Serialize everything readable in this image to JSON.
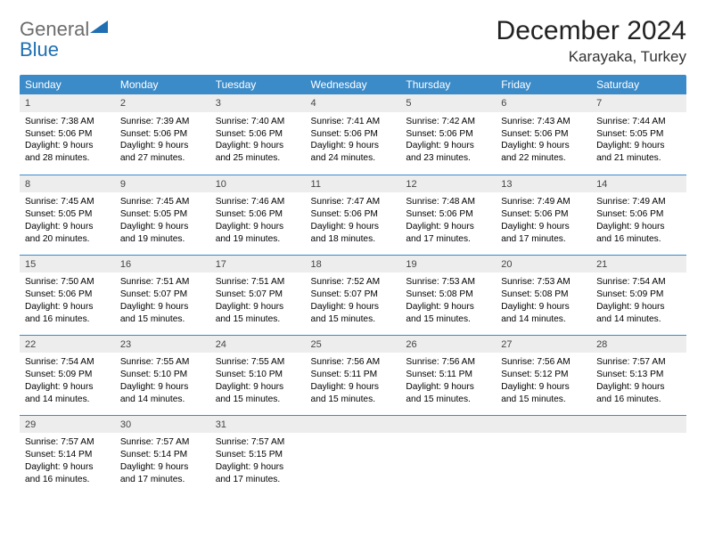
{
  "brand": {
    "word1": "General",
    "word2": "Blue",
    "gray": "#6d6d6d",
    "blue": "#1f6fb2"
  },
  "title": "December 2024",
  "location": "Karayaka, Turkey",
  "colors": {
    "header_bg": "#3b8bc9",
    "header_text": "#ffffff",
    "daynum_bg": "#ededed",
    "rule": "#3b8bc9",
    "page_bg": "#ffffff"
  },
  "weekdays": [
    "Sunday",
    "Monday",
    "Tuesday",
    "Wednesday",
    "Thursday",
    "Friday",
    "Saturday"
  ],
  "weeks": [
    [
      {
        "n": "1",
        "sr": "7:38 AM",
        "ss": "5:06 PM",
        "dl": "9 hours and 28 minutes."
      },
      {
        "n": "2",
        "sr": "7:39 AM",
        "ss": "5:06 PM",
        "dl": "9 hours and 27 minutes."
      },
      {
        "n": "3",
        "sr": "7:40 AM",
        "ss": "5:06 PM",
        "dl": "9 hours and 25 minutes."
      },
      {
        "n": "4",
        "sr": "7:41 AM",
        "ss": "5:06 PM",
        "dl": "9 hours and 24 minutes."
      },
      {
        "n": "5",
        "sr": "7:42 AM",
        "ss": "5:06 PM",
        "dl": "9 hours and 23 minutes."
      },
      {
        "n": "6",
        "sr": "7:43 AM",
        "ss": "5:06 PM",
        "dl": "9 hours and 22 minutes."
      },
      {
        "n": "7",
        "sr": "7:44 AM",
        "ss": "5:05 PM",
        "dl": "9 hours and 21 minutes."
      }
    ],
    [
      {
        "n": "8",
        "sr": "7:45 AM",
        "ss": "5:05 PM",
        "dl": "9 hours and 20 minutes."
      },
      {
        "n": "9",
        "sr": "7:45 AM",
        "ss": "5:05 PM",
        "dl": "9 hours and 19 minutes."
      },
      {
        "n": "10",
        "sr": "7:46 AM",
        "ss": "5:06 PM",
        "dl": "9 hours and 19 minutes."
      },
      {
        "n": "11",
        "sr": "7:47 AM",
        "ss": "5:06 PM",
        "dl": "9 hours and 18 minutes."
      },
      {
        "n": "12",
        "sr": "7:48 AM",
        "ss": "5:06 PM",
        "dl": "9 hours and 17 minutes."
      },
      {
        "n": "13",
        "sr": "7:49 AM",
        "ss": "5:06 PM",
        "dl": "9 hours and 17 minutes."
      },
      {
        "n": "14",
        "sr": "7:49 AM",
        "ss": "5:06 PM",
        "dl": "9 hours and 16 minutes."
      }
    ],
    [
      {
        "n": "15",
        "sr": "7:50 AM",
        "ss": "5:06 PM",
        "dl": "9 hours and 16 minutes."
      },
      {
        "n": "16",
        "sr": "7:51 AM",
        "ss": "5:07 PM",
        "dl": "9 hours and 15 minutes."
      },
      {
        "n": "17",
        "sr": "7:51 AM",
        "ss": "5:07 PM",
        "dl": "9 hours and 15 minutes."
      },
      {
        "n": "18",
        "sr": "7:52 AM",
        "ss": "5:07 PM",
        "dl": "9 hours and 15 minutes."
      },
      {
        "n": "19",
        "sr": "7:53 AM",
        "ss": "5:08 PM",
        "dl": "9 hours and 15 minutes."
      },
      {
        "n": "20",
        "sr": "7:53 AM",
        "ss": "5:08 PM",
        "dl": "9 hours and 14 minutes."
      },
      {
        "n": "21",
        "sr": "7:54 AM",
        "ss": "5:09 PM",
        "dl": "9 hours and 14 minutes."
      }
    ],
    [
      {
        "n": "22",
        "sr": "7:54 AM",
        "ss": "5:09 PM",
        "dl": "9 hours and 14 minutes."
      },
      {
        "n": "23",
        "sr": "7:55 AM",
        "ss": "5:10 PM",
        "dl": "9 hours and 14 minutes."
      },
      {
        "n": "24",
        "sr": "7:55 AM",
        "ss": "5:10 PM",
        "dl": "9 hours and 15 minutes."
      },
      {
        "n": "25",
        "sr": "7:56 AM",
        "ss": "5:11 PM",
        "dl": "9 hours and 15 minutes."
      },
      {
        "n": "26",
        "sr": "7:56 AM",
        "ss": "5:11 PM",
        "dl": "9 hours and 15 minutes."
      },
      {
        "n": "27",
        "sr": "7:56 AM",
        "ss": "5:12 PM",
        "dl": "9 hours and 15 minutes."
      },
      {
        "n": "28",
        "sr": "7:57 AM",
        "ss": "5:13 PM",
        "dl": "9 hours and 16 minutes."
      }
    ],
    [
      {
        "n": "29",
        "sr": "7:57 AM",
        "ss": "5:14 PM",
        "dl": "9 hours and 16 minutes."
      },
      {
        "n": "30",
        "sr": "7:57 AM",
        "ss": "5:14 PM",
        "dl": "9 hours and 17 minutes."
      },
      {
        "n": "31",
        "sr": "7:57 AM",
        "ss": "5:15 PM",
        "dl": "9 hours and 17 minutes."
      },
      {
        "n": "",
        "sr": "",
        "ss": "",
        "dl": "",
        "empty": true
      },
      {
        "n": "",
        "sr": "",
        "ss": "",
        "dl": "",
        "empty": true
      },
      {
        "n": "",
        "sr": "",
        "ss": "",
        "dl": "",
        "empty": true
      },
      {
        "n": "",
        "sr": "",
        "ss": "",
        "dl": "",
        "empty": true
      }
    ]
  ],
  "labels": {
    "sunrise": "Sunrise: ",
    "sunset": "Sunset: ",
    "daylight": "Daylight: "
  }
}
